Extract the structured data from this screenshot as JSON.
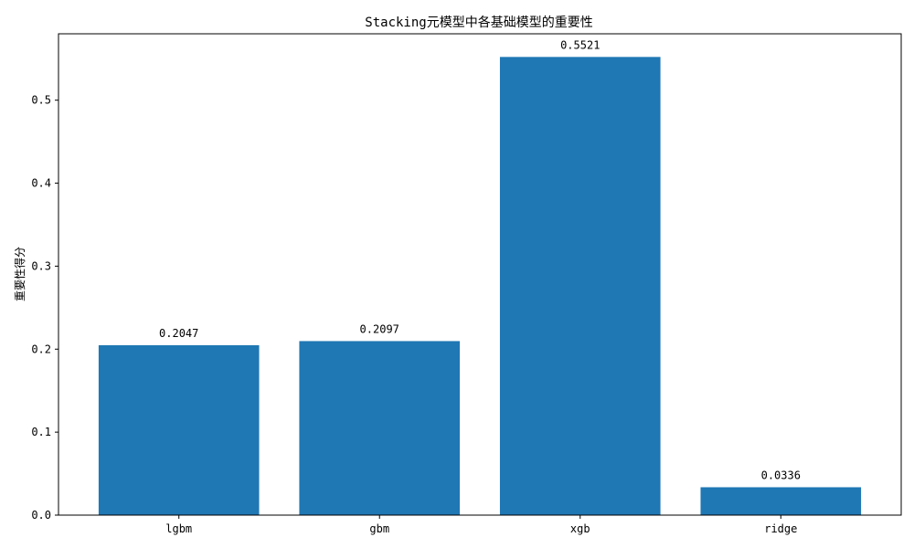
{
  "chart_data": {
    "type": "bar",
    "title": "Stacking元模型中各基础模型的重要性",
    "xlabel": "",
    "ylabel": "重要性得分",
    "categories": [
      "lgbm",
      "gbm",
      "xgb",
      "ridge"
    ],
    "values": [
      0.2047,
      0.2097,
      0.5521,
      0.0336
    ],
    "value_labels": [
      "0.2047",
      "0.2097",
      "0.5521",
      "0.0336"
    ],
    "ylim": [
      0,
      0.58
    ],
    "yticks": [
      0.0,
      0.1,
      0.2,
      0.3,
      0.4,
      0.5
    ],
    "ytick_labels": [
      "0.0",
      "0.1",
      "0.2",
      "0.3",
      "0.4",
      "0.5"
    ],
    "bar_color": "#1f77b4",
    "grid": false,
    "legend": "none"
  }
}
